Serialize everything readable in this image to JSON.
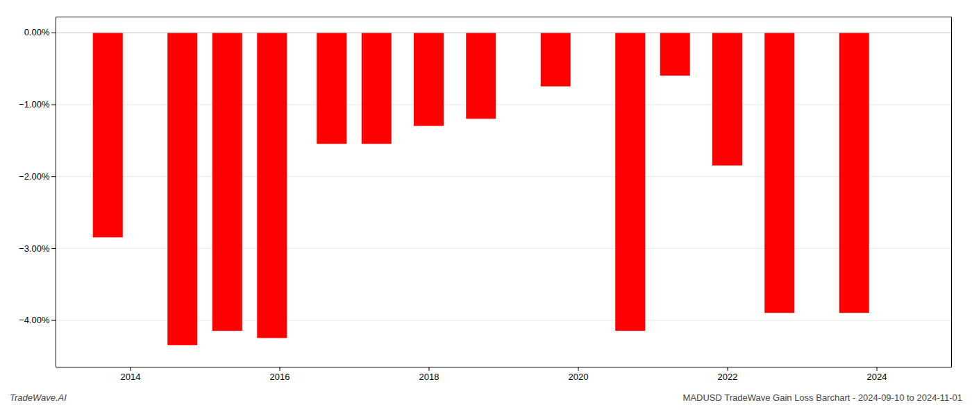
{
  "chart_data": {
    "type": "bar",
    "x": [
      2013.7,
      2014.7,
      2015.3,
      2015.9,
      2016.7,
      2017.3,
      2018.0,
      2018.7,
      2019.7,
      2020.7,
      2021.3,
      2022.0,
      2022.7,
      2023.7
    ],
    "values": [
      -2.85,
      -4.35,
      -4.15,
      -4.25,
      -1.55,
      -1.55,
      -1.3,
      -1.2,
      -0.75,
      -4.15,
      -0.6,
      -1.85,
      -3.9,
      -3.9
    ],
    "color": "#ff0000",
    "xlim": [
      2013.0,
      2025.0
    ],
    "xticks": [
      2014,
      2016,
      2018,
      2020,
      2022,
      2024
    ],
    "ylim": [
      -4.65,
      0.22
    ],
    "yticks": [
      {
        "value": 0.0,
        "label": "0.00%"
      },
      {
        "value": -1.0,
        "label": "−1.00%"
      },
      {
        "value": -2.0,
        "label": "−2.00%"
      },
      {
        "value": -3.0,
        "label": "−3.00%"
      },
      {
        "value": -4.0,
        "label": "−4.00%"
      }
    ],
    "grid": true,
    "annotations": [
      "TradeWave.AI",
      "MADUSD TradeWave Gain Loss Barchart - 2024-09-10 to 2024-11-01"
    ]
  }
}
